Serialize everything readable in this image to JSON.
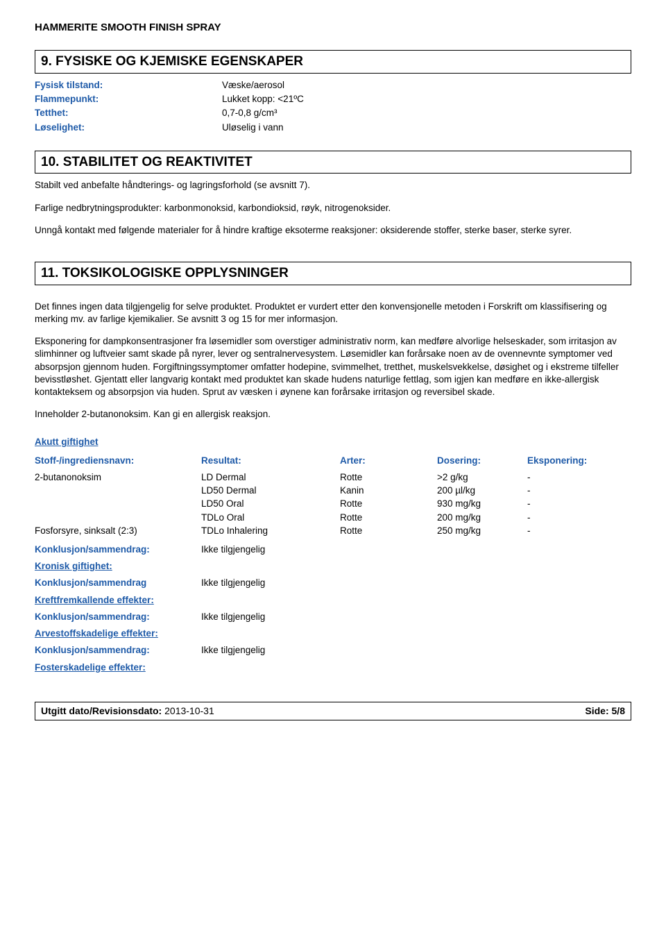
{
  "product_title": "HAMMERITE SMOOTH FINISH SPRAY",
  "section9": {
    "heading": "9.   FYSISKE OG KJEMISKE EGENSKAPER",
    "rows": [
      {
        "label": "Fysisk tilstand:",
        "value": "Væske/aerosol"
      },
      {
        "label": "Flammepunkt:",
        "value": "Lukket kopp: <21ºC"
      },
      {
        "label": "Tetthet:",
        "value": "0,7-0,8 g/cm³"
      },
      {
        "label": "Løselighet:",
        "value": "Uløselig i vann"
      }
    ]
  },
  "section10": {
    "heading": "10.  STABILITET OG REAKTIVITET",
    "p1": "Stabilt ved anbefalte håndterings- og lagringsforhold (se avsnitt 7).",
    "p2": "Farlige nedbrytningsprodukter: karbonmonoksid, karbondioksid, røyk, nitrogenoksider.",
    "p3": "Unngå kontakt med følgende materialer for å hindre kraftige eksoterme reaksjoner: oksiderende stoffer, sterke baser, sterke syrer."
  },
  "section11": {
    "heading": "11.  TOKSIKOLOGISKE OPPLYSNINGER",
    "p1": "Det finnes ingen data tilgjengelig for selve produktet. Produktet er vurdert etter den konvensjonelle metoden i Forskrift om klassifisering og merking mv. av farlige kjemikalier. Se avsnitt 3 og 15 for mer informasjon.",
    "p2": "Eksponering for dampkonsentrasjoner fra løsemidler som overstiger administrativ norm, kan medføre alvorlige helseskader, som irritasjon av slimhinner og luftveier samt skade på nyrer, lever og sentralnervesystem. Løsemidler kan forårsake noen av de ovennevnte symptomer ved absorpsjon gjennom huden. Forgiftningssymptomer omfatter hodepine, svimmelhet, tretthet, muskelsvekkelse, døsighet og i ekstreme tilfeller bevisstløshet. Gjentatt eller langvarig kontakt med produktet kan skade hudens naturlige fettlag, som igjen kan medføre en ikke-allergisk kontakteksem og absorpsjon via huden. Sprut av væsken i øynene kan forårsake irritasjon og reversibel skade.",
    "p3": "Inneholder 2-butanonoksim. Kan gi en allergisk reaksjon.",
    "acute_heading": "Akutt giftighet",
    "headers": {
      "name": "Stoff-/ingrediensnavn:",
      "result": "Resultat:",
      "species": "Arter:",
      "dose": "Dosering:",
      "exposure": "Eksponering:"
    },
    "rows": [
      {
        "name": "2-butanonoksim",
        "result": "LD Dermal",
        "species": "Rotte",
        "dose": ">2 g/kg",
        "exp": "-"
      },
      {
        "name": "",
        "result": "LD50 Dermal",
        "species": "Kanin",
        "dose": "200 µl/kg",
        "exp": "-"
      },
      {
        "name": "",
        "result": "LD50 Oral",
        "species": "Rotte",
        "dose": "930 mg/kg",
        "exp": "-"
      },
      {
        "name": "",
        "result": "TDLo Oral",
        "species": "Rotte",
        "dose": "200 mg/kg",
        "exp": "-"
      },
      {
        "name": "Fosforsyre, sinksalt (2:3)",
        "result": "TDLo Inhalering",
        "species": "Rotte",
        "dose": "250 mg/kg",
        "exp": "-"
      }
    ],
    "summaries": [
      {
        "label": "Konklusjon/sammendrag:",
        "value": "Ikke tilgjengelig",
        "underline": false
      },
      {
        "label": "Kronisk giftighet:",
        "value": "",
        "underline": true
      },
      {
        "label": "Konklusjon/sammendrag",
        "value": "Ikke tilgjengelig",
        "underline": false
      },
      {
        "label": "Kreftfremkallende effekter:",
        "value": "",
        "underline": true
      },
      {
        "label": "Konklusjon/sammendrag:",
        "value": "Ikke tilgjengelig",
        "underline": false
      },
      {
        "label": "Arvestoffskadelige effekter:",
        "value": "",
        "underline": true
      },
      {
        "label": "Konklusjon/sammendrag:",
        "value": "Ikke tilgjengelig",
        "underline": false
      },
      {
        "label": "Fosterskadelige effekter:",
        "value": "",
        "underline": true
      }
    ]
  },
  "footer": {
    "left_label": "Utgitt dato/Revisionsdato:",
    "date": "2013-10-31",
    "right": "Side: 5/8"
  },
  "colors": {
    "blue": "#1E5AA8",
    "black": "#000000",
    "bg": "#ffffff"
  }
}
